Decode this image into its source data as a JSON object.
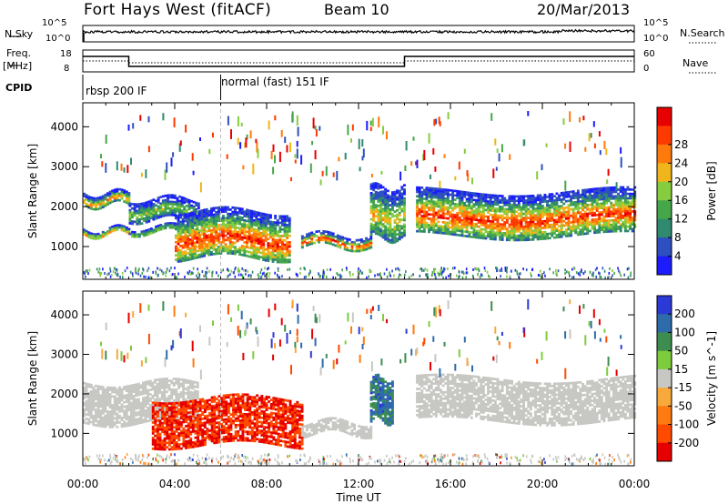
{
  "header": {
    "station": "Fort Hays West (fitACF)",
    "beam": "Beam 10",
    "date": "20/Mar/2013"
  },
  "panel_labels": {
    "nsky": "N.Sky",
    "nsearch": "N.Search",
    "freq": "Freq.",
    "freq_unit": "[MHz]",
    "nave": "Nave",
    "cpid": "CPID",
    "nsky_ticks": [
      "10^5",
      "10^0"
    ],
    "nsearch_ticks": [
      "10^5",
      "10^0"
    ],
    "freq_ticks": [
      "18",
      "8"
    ],
    "nave_ticks": [
      "60",
      "0"
    ]
  },
  "cpid_segments": [
    {
      "label": "rbsp 200 IF",
      "start_hour": 0,
      "end_hour": 6
    },
    {
      "label": "normal (fast) 151 IF",
      "start_hour": 6,
      "end_hour": 24
    }
  ],
  "colors": {
    "power_scale": [
      "#1c1cff",
      "#2e4fbf",
      "#2f8a70",
      "#46a64a",
      "#86cc3f",
      "#f0b51a",
      "#ff7a0c",
      "#ff3a00",
      "#e80000"
    ],
    "velocity_scale": [
      "#2b39d6",
      "#2d6bab",
      "#3d8d50",
      "#7ccc3e",
      "#c7c7c3",
      "#f7a93b",
      "#ff7a10",
      "#ff4a00",
      "#e60000"
    ],
    "ground_scatter": "#c7c7c3"
  },
  "chart_data": [
    {
      "type": "heatmap",
      "title": "Power",
      "ylabel": "Slant Range [km]",
      "xlabel": "",
      "x_ticks": [
        "00:00",
        "04:00",
        "08:00",
        "12:00",
        "16:00",
        "20:00",
        "00:00"
      ],
      "xlim_hours": [
        0,
        24
      ],
      "y_ticks": [
        1000,
        2000,
        3000,
        4000
      ],
      "ylim": [
        180,
        4600
      ],
      "colorbar": {
        "label": "Power [dB]",
        "ticks": [
          4,
          8,
          12,
          16,
          20,
          24,
          28
        ]
      },
      "echo_bands": [
        {
          "from_hour": 0.0,
          "to_hour": 2.0,
          "ranges_km": [
            [
              1300,
              1450
            ],
            [
              2050,
              2350
            ]
          ],
          "peak_db": 24
        },
        {
          "from_hour": 2.0,
          "to_hour": 5.0,
          "ranges_km": [
            [
              1350,
              1500
            ],
            [
              1700,
              2200
            ]
          ],
          "peak_db": 16
        },
        {
          "from_hour": 4.0,
          "to_hour": 9.0,
          "ranges_km": [
            [
              700,
              1900
            ]
          ],
          "peak_db": 28
        },
        {
          "from_hour": 9.5,
          "to_hour": 12.5,
          "ranges_km": [
            [
              1000,
              1300
            ]
          ],
          "peak_db": 28
        },
        {
          "from_hour": 12.5,
          "to_hour": 14.0,
          "ranges_km": [
            [
              1200,
              2500
            ]
          ],
          "peak_db": 20
        },
        {
          "from_hour": 14.5,
          "to_hour": 24.0,
          "ranges_km": [
            [
              1300,
              2400
            ]
          ],
          "peak_db": 28
        }
      ]
    },
    {
      "type": "heatmap",
      "title": "Velocity",
      "ylabel": "Slant Range [km]",
      "xlabel": "Time UT",
      "x_ticks": [
        "00:00",
        "04:00",
        "08:00",
        "12:00",
        "16:00",
        "20:00",
        "00:00"
      ],
      "xlim_hours": [
        0,
        24
      ],
      "y_ticks": [
        1000,
        2000,
        3000,
        4000
      ],
      "ylim": [
        180,
        4600
      ],
      "colorbar": {
        "label": "Velocity [m s^-1]",
        "ticks": [
          200,
          100,
          50,
          15,
          -15,
          -50,
          -100,
          -200
        ]
      },
      "echo_bands": [
        {
          "from_hour": 0.0,
          "to_hour": 5.0,
          "ranges_km": [
            [
              1300,
              2300
            ]
          ],
          "velocity": 0,
          "note": "ground scatter"
        },
        {
          "from_hour": 3.0,
          "to_hour": 9.5,
          "ranges_km": [
            [
              700,
              1900
            ]
          ],
          "velocity": -150
        },
        {
          "from_hour": 9.5,
          "to_hour": 12.5,
          "ranges_km": [
            [
              1000,
              1300
            ]
          ],
          "velocity": 0
        },
        {
          "from_hour": 12.5,
          "to_hour": 13.5,
          "ranges_km": [
            [
              1300,
              2400
            ]
          ],
          "velocity": 100
        },
        {
          "from_hour": 14.5,
          "to_hour": 24.0,
          "ranges_km": [
            [
              1300,
              2400
            ]
          ],
          "velocity": 0,
          "note": "ground scatter"
        }
      ]
    }
  ]
}
